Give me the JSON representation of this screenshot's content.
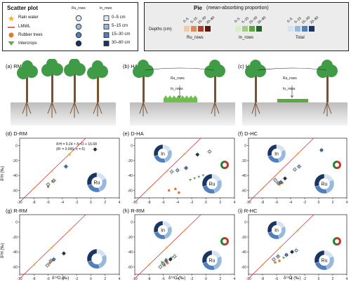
{
  "legend_scatter": {
    "title": "Scatter plot",
    "col_ru": "Ru_rows",
    "col_in": "In_rows",
    "items": [
      {
        "label": "Rain water",
        "color": "#f2b619",
        "shape": "star-icon"
      },
      {
        "label": "LMWL",
        "color": "#d9363e",
        "shape": "line-icon"
      },
      {
        "label": "Rubber trees",
        "color": "#e07a2e",
        "shape": "circle-icon"
      },
      {
        "label": "Intercrops",
        "color": "#6aa84f",
        "shape": "triangle-icon"
      }
    ],
    "depths": [
      "0–5 cm",
      "5–15 cm",
      "15–30 cm",
      "30–80 cm"
    ]
  },
  "legend_pie": {
    "title": "Pie",
    "subtitle": "(mean-absorbing proportion)",
    "depth_label": "Depths (cm)",
    "depth_ticks": [
      "0–5",
      "5–15",
      "15–30",
      "30–80"
    ],
    "groups": [
      "Ru_rows",
      "In_rows",
      "Total"
    ],
    "colors": {
      "ru": [
        "#f3c9a8",
        "#d98c5a",
        "#a8442a",
        "#5a1a0e"
      ],
      "in": [
        "#d8ecc9",
        "#9fd081",
        "#5aa544",
        "#23622a"
      ],
      "total": [
        "#d4e2f2",
        "#98b9df",
        "#4f7fbc",
        "#1b3563"
      ]
    }
  },
  "scenes": [
    {
      "label": "(a) RM"
    },
    {
      "label": "(b) HA",
      "ru_label": "Ru_rows",
      "in_label": "In_rows"
    },
    {
      "label": "(c) HC",
      "ru_label": "Ru_rows",
      "in_label": "In_rows"
    }
  ],
  "plots": [
    {
      "label": "(d) D-RM",
      "equation": "δ²H = 9.24 × δ¹⁸O + 16.68",
      "stats": "(R² = 0.996; n = 6)",
      "pies": [
        "Ru"
      ]
    },
    {
      "label": "(e) D-HA",
      "pies": [
        "In",
        "Ru"
      ]
    },
    {
      "label": "(f) D-HC",
      "pies": [
        "In",
        "Ru"
      ]
    },
    {
      "label": "(g) R-RM",
      "pies": [
        ""
      ]
    },
    {
      "label": "(h) R-RM",
      "pies": [
        "In",
        "Ru"
      ]
    },
    {
      "label": "(i) R-HC",
      "pies": [
        "In",
        "Ru"
      ]
    }
  ],
  "axes": {
    "xlabel": "δ¹⁸O (‰)",
    "ylabel": "δ²H (‰)",
    "xticks": [
      "-10",
      "-8",
      "-6",
      "-4",
      "-2",
      "0",
      "2",
      "4"
    ],
    "yticks": [
      "0",
      "-20",
      "-40",
      "-60"
    ]
  },
  "chart_data": [
    {
      "type": "scatter",
      "title": "(d) D-RM",
      "xlim": [
        -10,
        4
      ],
      "ylim": [
        -70,
        10
      ],
      "lmwl": {
        "slope": 9.24,
        "intercept": 16.68
      },
      "series": [
        {
          "name": "Rubber trees",
          "x": [
            -6.0,
            -5.4
          ],
          "y": [
            -55,
            -48
          ]
        },
        {
          "name": "Soil water",
          "x": [
            -6.0,
            -5.2,
            -3.5,
            0.6
          ],
          "y": [
            -52,
            -47,
            -28,
            -5
          ]
        },
        {
          "name": "Rain water",
          "x": [
            -3.0
          ],
          "y": [
            -12
          ]
        }
      ]
    },
    {
      "type": "scatter",
      "title": "(e) D-HA",
      "xlim": [
        -10,
        4
      ],
      "ylim": [
        -70,
        10
      ],
      "lmwl": {
        "slope": 9.24,
        "intercept": 16.68
      },
      "series": [
        {
          "name": "Rubber trees",
          "x": [
            -5.2,
            -4.3,
            -3.8
          ],
          "y": [
            -60,
            -58,
            -63
          ]
        },
        {
          "name": "Intercrops",
          "x": [
            -2.2,
            -1.6,
            -1.0,
            -0.4
          ],
          "y": [
            -46,
            -44,
            -42,
            -40
          ]
        },
        {
          "name": "Soil water",
          "x": [
            -4.8,
            -4.0,
            -2.8,
            -1.2,
            0.5
          ],
          "y": [
            -35,
            -33,
            -30,
            -12,
            -8
          ]
        }
      ]
    },
    {
      "type": "scatter",
      "title": "(f) D-HC",
      "xlim": [
        -10,
        4
      ],
      "ylim": [
        -70,
        10
      ],
      "lmwl": {
        "slope": 9.24,
        "intercept": 16.68
      },
      "series": [
        {
          "name": "Rubber trees",
          "x": [
            -5.6,
            -5.2
          ],
          "y": [
            -52,
            -50
          ]
        },
        {
          "name": "Soil water",
          "x": [
            -6.2,
            -5.8,
            -5.4,
            -4.8,
            -3.4,
            -2.8,
            0.4
          ],
          "y": [
            -46,
            -50,
            -49,
            -44,
            -32,
            -28,
            -6
          ]
        }
      ]
    },
    {
      "type": "scatter",
      "title": "(g) R-RM",
      "xlim": [
        -10,
        4
      ],
      "ylim": [
        -70,
        10
      ],
      "lmwl": {
        "slope": 9.24,
        "intercept": 16.68
      },
      "series": [
        {
          "name": "Soil water",
          "x": [
            -6.1,
            -5.6,
            -5.2,
            -3.8
          ],
          "y": [
            -58,
            -52,
            -50,
            -42
          ]
        },
        {
          "name": "Rubber trees",
          "x": [
            -5.8
          ],
          "y": [
            -55
          ]
        }
      ]
    },
    {
      "type": "scatter",
      "title": "(h) R-RM",
      "xlim": [
        -10,
        4
      ],
      "ylim": [
        -70,
        10
      ],
      "lmwl": {
        "slope": 9.24,
        "intercept": 16.68
      },
      "series": [
        {
          "name": "Rubber trees",
          "x": [
            -5.8,
            -5.4
          ],
          "y": [
            -58,
            -55
          ]
        },
        {
          "name": "Intercrops",
          "x": [
            -6.2,
            -5.6,
            -4.8
          ],
          "y": [
            -54,
            -50,
            -48
          ]
        },
        {
          "name": "Soil water",
          "x": [
            -6.4,
            -6.0,
            -5.6,
            -5.0,
            -4.4
          ],
          "y": [
            -60,
            -56,
            -52,
            -50,
            -46
          ]
        }
      ]
    },
    {
      "type": "scatter",
      "title": "(i) R-HC",
      "xlim": [
        -10,
        4
      ],
      "ylim": [
        -70,
        10
      ],
      "lmwl": {
        "slope": 9.24,
        "intercept": 16.68
      },
      "series": [
        {
          "name": "Rubber trees",
          "x": [
            -6.2,
            -5.6
          ],
          "y": [
            -54,
            -52
          ]
        },
        {
          "name": "Intercrops",
          "x": [
            -5.0
          ],
          "y": [
            -48
          ]
        },
        {
          "name": "Soil water",
          "x": [
            -6.4,
            -5.8,
            -4.6,
            -3.8,
            -3.2
          ],
          "y": [
            -50,
            -46,
            -44,
            -40,
            -38
          ]
        }
      ]
    }
  ]
}
